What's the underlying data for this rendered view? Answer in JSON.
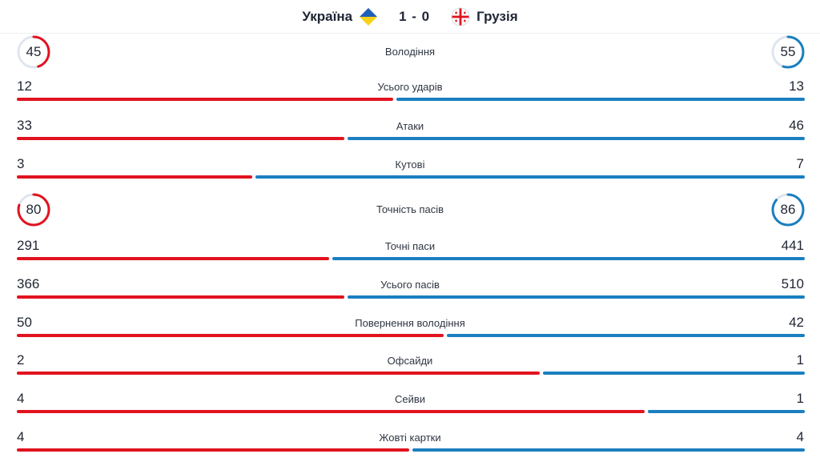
{
  "match": {
    "home_team": "Україна",
    "away_team": "Грузія",
    "score": "1 - 0",
    "home_flag_icon": "ukraine-flag-icon",
    "away_flag_icon": "georgia-flag-icon"
  },
  "colors": {
    "home": "#e1131f",
    "away": "#1b7fc0",
    "ring_track": "#dfe5ee"
  },
  "stats": [
    {
      "kind": "circle",
      "label": "Володіння",
      "home": 45,
      "away": 55,
      "home_text": "45",
      "away_text": "55"
    },
    {
      "kind": "bar",
      "label": "Усього ударів",
      "home": 12,
      "away": 13,
      "home_text": "12",
      "away_text": "13"
    },
    {
      "kind": "bar",
      "label": "Атаки",
      "home": 33,
      "away": 46,
      "home_text": "33",
      "away_text": "46"
    },
    {
      "kind": "bar",
      "label": "Кутові",
      "home": 3,
      "away": 7,
      "home_text": "3",
      "away_text": "7"
    },
    {
      "kind": "circle",
      "label": "Точність пасів",
      "home": 80,
      "away": 86,
      "home_text": "80",
      "away_text": "86"
    },
    {
      "kind": "bar",
      "label": "Точні паси",
      "home": 291,
      "away": 441,
      "home_text": "291",
      "away_text": "441"
    },
    {
      "kind": "bar",
      "label": "Усього пасів",
      "home": 366,
      "away": 510,
      "home_text": "366",
      "away_text": "510"
    },
    {
      "kind": "bar",
      "label": "Повернення володіння",
      "home": 50,
      "away": 42,
      "home_text": "50",
      "away_text": "42"
    },
    {
      "kind": "bar",
      "label": "Офсайди",
      "home": 2,
      "away": 1,
      "home_text": "2",
      "away_text": "1"
    },
    {
      "kind": "bar",
      "label": "Сейви",
      "home": 4,
      "away": 1,
      "home_text": "4",
      "away_text": "1"
    },
    {
      "kind": "bar",
      "label": "Жовті картки",
      "home": 4,
      "away": 4,
      "home_text": "4",
      "away_text": "4"
    }
  ]
}
